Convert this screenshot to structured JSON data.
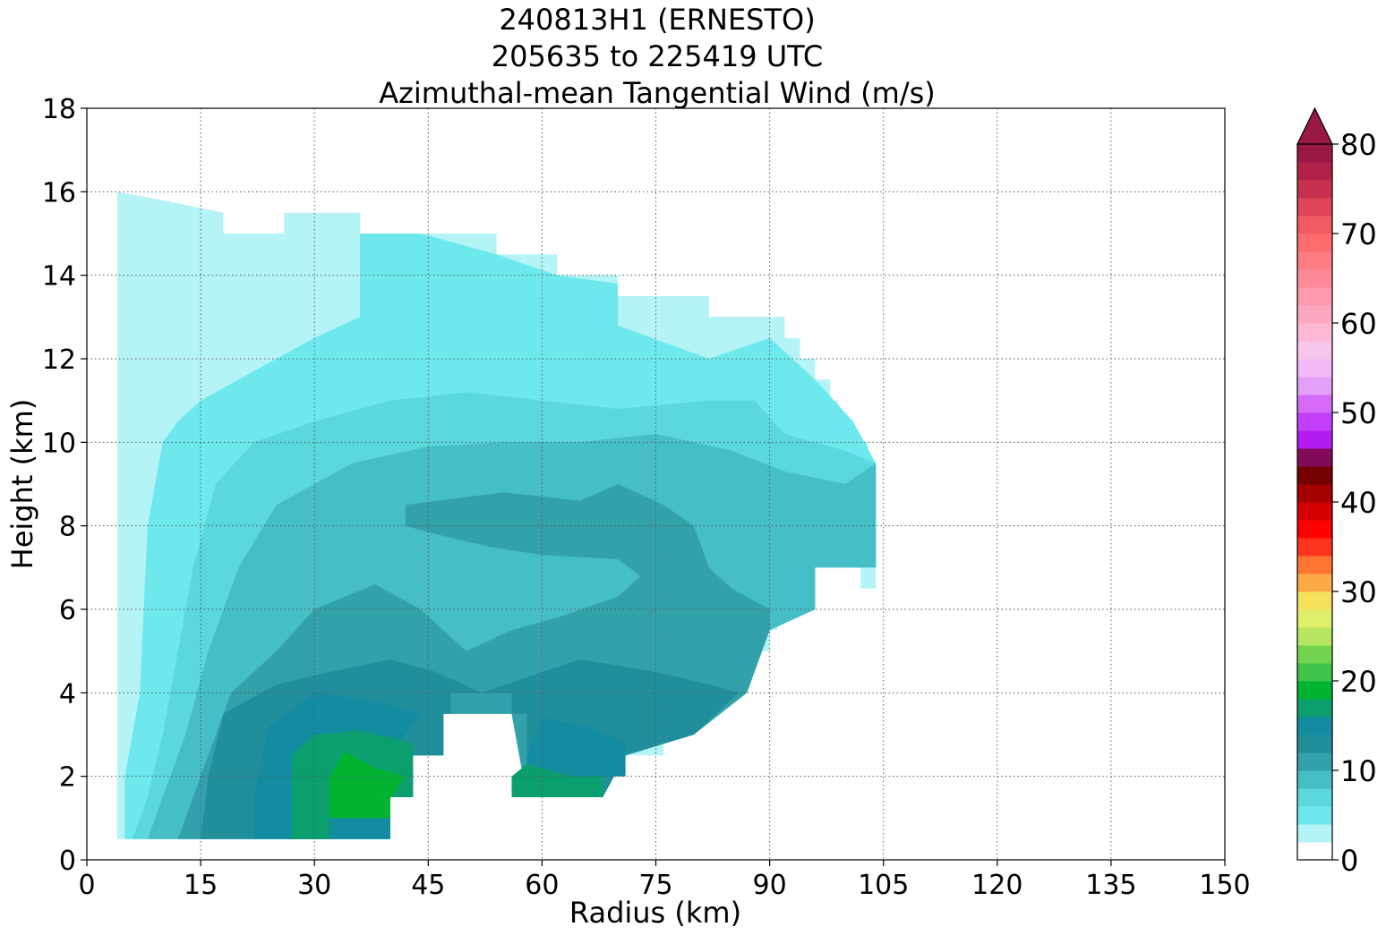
{
  "chart_data": {
    "type": "heatmap",
    "title_lines": [
      "240813H1 (ERNESTO)",
      "205635 to 225419 UTC",
      "Azimuthal-mean Tangential Wind (m/s)"
    ],
    "xlabel": "Radius (km)",
    "ylabel": "Height (km)",
    "xlim": [
      0,
      150
    ],
    "ylim": [
      0,
      18
    ],
    "xticks": [
      "0",
      "15",
      "30",
      "45",
      "60",
      "75",
      "90",
      "105",
      "120",
      "135",
      "150"
    ],
    "yticks": [
      "0",
      "2",
      "4",
      "6",
      "8",
      "10",
      "12",
      "14",
      "16",
      "18"
    ],
    "grid": true,
    "colorbar": {
      "range": [
        0,
        80
      ],
      "step": 2,
      "ticks": [
        "0",
        "10",
        "20",
        "30",
        "40",
        "50",
        "60",
        "70",
        "80"
      ],
      "extend": "max",
      "colors": [
        "#ffffff",
        "#b4f4f6",
        "#6de9ee",
        "#5bd8dd",
        "#45bec6",
        "#33a1aa",
        "#218f9b",
        "#138ba0",
        "#0b9e6e",
        "#00b432",
        "#3ec449",
        "#72d34f",
        "#b6e560",
        "#dfef6b",
        "#f6e05c",
        "#fcaa46",
        "#fe7432",
        "#fe341c",
        "#fe0000",
        "#d50000",
        "#a50000",
        "#750000",
        "#810a5a",
        "#b31cf0",
        "#c33ffc",
        "#d569f8",
        "#e4a0f8",
        "#f2b9f8",
        "#f8c5ec",
        "#fdb8d6",
        "#fea8c0",
        "#fe99ae",
        "#fe8a98",
        "#fe7c84",
        "#fe6c6f",
        "#f15c62",
        "#de4557",
        "#c8304f",
        "#b12147",
        "#991944"
      ]
    },
    "contour_regions": [
      {
        "level": 2,
        "points": [
          [
            4,
            0.5
          ],
          [
            40,
            0.5
          ],
          [
            40,
            2.5
          ],
          [
            47,
            2.5
          ],
          [
            47,
            3.5
          ],
          [
            48,
            3.5
          ],
          [
            48,
            4
          ],
          [
            56,
            4
          ],
          [
            56,
            3.5
          ],
          [
            58,
            3.5
          ],
          [
            58,
            1.5
          ],
          [
            68,
            1.5
          ],
          [
            68,
            2
          ],
          [
            71,
            2
          ],
          [
            71,
            2.5
          ],
          [
            76,
            2.5
          ],
          [
            76,
            3
          ],
          [
            80,
            3
          ],
          [
            80,
            3.5
          ],
          [
            82,
            3.5
          ],
          [
            82,
            4
          ],
          [
            87,
            4
          ],
          [
            87,
            4.5
          ],
          [
            88,
            4.5
          ],
          [
            88,
            5
          ],
          [
            90,
            5
          ],
          [
            90,
            5.5
          ],
          [
            91,
            5.5
          ],
          [
            91,
            6
          ],
          [
            96,
            6
          ],
          [
            96,
            7
          ],
          [
            102,
            7
          ],
          [
            102,
            6.5
          ],
          [
            104,
            6.5
          ],
          [
            104,
            9.5
          ],
          [
            103,
            9.5
          ],
          [
            103,
            10
          ],
          [
            101,
            10
          ],
          [
            101,
            10.5
          ],
          [
            99,
            10.5
          ],
          [
            99,
            11
          ],
          [
            98,
            11
          ],
          [
            98,
            11.5
          ],
          [
            96,
            11.5
          ],
          [
            96,
            12
          ],
          [
            94,
            12
          ],
          [
            94,
            12.5
          ],
          [
            92,
            12.5
          ],
          [
            92,
            13
          ],
          [
            82,
            13
          ],
          [
            82,
            13.5
          ],
          [
            70,
            13.5
          ],
          [
            70,
            14
          ],
          [
            62,
            14
          ],
          [
            62,
            14.5
          ],
          [
            54,
            14.5
          ],
          [
            54,
            15
          ],
          [
            36,
            15
          ],
          [
            36,
            15.5
          ],
          [
            26,
            15.5
          ],
          [
            26,
            15
          ],
          [
            18,
            15
          ],
          [
            18,
            15.5
          ],
          [
            10,
            15.8
          ],
          [
            4,
            16
          ],
          [
            4,
            10
          ],
          [
            4,
            0.5
          ]
        ]
      },
      {
        "level": 4,
        "points": [
          [
            5,
            0.5
          ],
          [
            40,
            0.5
          ],
          [
            40,
            2.5
          ],
          [
            47,
            2.5
          ],
          [
            47,
            3.5
          ],
          [
            56,
            3.5
          ],
          [
            58,
            1.5
          ],
          [
            68,
            1.5
          ],
          [
            71,
            2.5
          ],
          [
            80,
            3
          ],
          [
            87,
            4
          ],
          [
            90,
            5.5
          ],
          [
            96,
            6
          ],
          [
            96,
            7
          ],
          [
            104,
            7
          ],
          [
            104,
            9.5
          ],
          [
            101,
            10.5
          ],
          [
            96,
            11.5
          ],
          [
            90,
            12.5
          ],
          [
            82,
            12
          ],
          [
            70,
            12.8
          ],
          [
            70,
            13.8
          ],
          [
            62,
            14
          ],
          [
            54,
            14.5
          ],
          [
            44,
            15
          ],
          [
            36,
            15
          ],
          [
            36,
            14
          ],
          [
            36,
            13
          ],
          [
            30,
            12.5
          ],
          [
            25,
            12
          ],
          [
            20,
            11.5
          ],
          [
            15,
            11
          ],
          [
            12,
            10.5
          ],
          [
            10,
            10
          ],
          [
            8,
            8
          ],
          [
            7,
            4
          ],
          [
            5,
            2
          ],
          [
            5,
            0.5
          ]
        ]
      },
      {
        "level": 6,
        "points": [
          [
            6,
            0.5
          ],
          [
            40,
            0.5
          ],
          [
            40,
            2.5
          ],
          [
            47,
            2.5
          ],
          [
            47,
            3.5
          ],
          [
            56,
            3.5
          ],
          [
            58,
            1.5
          ],
          [
            68,
            1.5
          ],
          [
            71,
            2.5
          ],
          [
            80,
            3
          ],
          [
            87,
            4
          ],
          [
            90,
            5.5
          ],
          [
            96,
            6
          ],
          [
            96,
            7
          ],
          [
            104,
            7
          ],
          [
            104,
            9.5
          ],
          [
            100,
            9.8
          ],
          [
            92,
            10.2
          ],
          [
            88,
            11
          ],
          [
            82,
            11
          ],
          [
            70,
            10.8
          ],
          [
            60,
            11
          ],
          [
            50,
            11.2
          ],
          [
            40,
            11
          ],
          [
            30,
            10.5
          ],
          [
            22,
            10
          ],
          [
            17,
            9
          ],
          [
            14,
            7
          ],
          [
            12,
            5
          ],
          [
            10,
            3
          ],
          [
            8,
            1.5
          ],
          [
            6,
            0.5
          ]
        ]
      },
      {
        "level": 8,
        "points": [
          [
            8,
            0.5
          ],
          [
            40,
            0.5
          ],
          [
            40,
            2.5
          ],
          [
            47,
            2.5
          ],
          [
            47,
            3.5
          ],
          [
            56,
            3.5
          ],
          [
            58,
            1.5
          ],
          [
            68,
            1.5
          ],
          [
            71,
            2.5
          ],
          [
            80,
            3
          ],
          [
            87,
            4
          ],
          [
            90,
            5.5
          ],
          [
            96,
            6
          ],
          [
            96,
            7
          ],
          [
            104,
            7
          ],
          [
            104,
            9.5
          ],
          [
            100,
            9
          ],
          [
            92,
            9.3
          ],
          [
            85,
            9.8
          ],
          [
            75,
            10.2
          ],
          [
            65,
            10
          ],
          [
            55,
            10
          ],
          [
            45,
            9.9
          ],
          [
            35,
            9.5
          ],
          [
            25,
            8.5
          ],
          [
            20,
            7
          ],
          [
            16,
            5
          ],
          [
            13,
            3
          ],
          [
            10,
            1.5
          ],
          [
            8,
            0.5
          ]
        ]
      },
      {
        "level": 10,
        "points": [
          [
            12,
            0.5
          ],
          [
            40,
            0.5
          ],
          [
            40,
            2.5
          ],
          [
            47,
            2.5
          ],
          [
            47,
            3.5
          ],
          [
            56,
            3.5
          ],
          [
            58,
            1.5
          ],
          [
            68,
            1.5
          ],
          [
            71,
            2.5
          ],
          [
            80,
            3
          ],
          [
            87,
            4
          ],
          [
            90,
            5.5
          ],
          [
            90,
            6
          ],
          [
            85,
            6.5
          ],
          [
            82,
            7
          ],
          [
            80,
            8
          ],
          [
            76,
            8.5
          ],
          [
            70,
            9
          ],
          [
            65,
            8.6
          ],
          [
            55,
            8.8
          ],
          [
            42,
            8.5
          ],
          [
            42,
            8
          ],
          [
            46,
            7.8
          ],
          [
            53,
            7.5
          ],
          [
            60,
            7.3
          ],
          [
            70,
            7.2
          ],
          [
            73,
            6.8
          ],
          [
            70,
            6.3
          ],
          [
            62,
            5.8
          ],
          [
            56,
            5.5
          ],
          [
            50,
            5
          ],
          [
            44,
            6
          ],
          [
            38,
            6.6
          ],
          [
            30,
            6
          ],
          [
            25,
            5
          ],
          [
            19,
            4
          ],
          [
            15,
            2
          ],
          [
            12,
            0.5
          ]
        ]
      },
      {
        "level": 12,
        "points": [
          [
            15,
            0.5
          ],
          [
            40,
            0.5
          ],
          [
            40,
            2.5
          ],
          [
            47,
            2.5
          ],
          [
            47,
            3.5
          ],
          [
            48,
            3.5
          ],
          [
            48,
            4
          ],
          [
            56,
            4
          ],
          [
            56,
            3.5
          ],
          [
            58,
            3.5
          ],
          [
            58,
            1.5
          ],
          [
            68,
            1.5
          ],
          [
            71,
            2.5
          ],
          [
            80,
            3
          ],
          [
            86,
            4
          ],
          [
            82,
            4.2
          ],
          [
            75,
            4.5
          ],
          [
            65,
            4.8
          ],
          [
            60,
            4.5
          ],
          [
            52,
            4
          ],
          [
            46,
            4.5
          ],
          [
            40,
            4.8
          ],
          [
            32,
            4.5
          ],
          [
            25,
            4.2
          ],
          [
            18,
            3.5
          ],
          [
            16,
            2
          ],
          [
            15,
            0.5
          ]
        ]
      },
      {
        "level": 14,
        "points": [
          [
            22,
            0.5
          ],
          [
            40,
            0.5
          ],
          [
            40,
            2.5
          ],
          [
            44,
            3.5
          ],
          [
            38,
            3.8
          ],
          [
            30,
            4
          ],
          [
            24,
            3.2
          ],
          [
            22,
            1.5
          ],
          [
            22,
            0.5
          ]
        ]
      },
      {
        "level": 14,
        "points": [
          [
            58,
            1.5
          ],
          [
            68,
            1.5
          ],
          [
            68,
            2
          ],
          [
            71,
            2
          ],
          [
            71,
            2.8
          ],
          [
            66,
            3.2
          ],
          [
            60,
            3.4
          ],
          [
            58,
            2.5
          ],
          [
            58,
            1.5
          ]
        ]
      },
      {
        "level": 16,
        "points": [
          [
            27,
            0.5
          ],
          [
            32,
            0.5
          ],
          [
            32,
            1
          ],
          [
            40,
            1
          ],
          [
            40,
            1.5
          ],
          [
            43,
            1.5
          ],
          [
            43,
            2.8
          ],
          [
            36,
            3.1
          ],
          [
            30,
            3
          ],
          [
            27,
            2.5
          ],
          [
            27,
            0.5
          ]
        ]
      },
      {
        "level": 16,
        "points": [
          [
            56,
            1.5
          ],
          [
            68,
            1.5
          ],
          [
            68,
            2
          ],
          [
            64,
            2
          ],
          [
            58,
            2.3
          ],
          [
            56,
            2
          ],
          [
            56,
            1.5
          ]
        ]
      },
      {
        "level": 18,
        "points": [
          [
            32,
            1
          ],
          [
            40,
            1
          ],
          [
            40,
            1.5
          ],
          [
            42,
            2
          ],
          [
            38,
            2.2
          ],
          [
            34,
            2.6
          ],
          [
            32,
            2
          ],
          [
            32,
            1
          ]
        ]
      }
    ]
  }
}
